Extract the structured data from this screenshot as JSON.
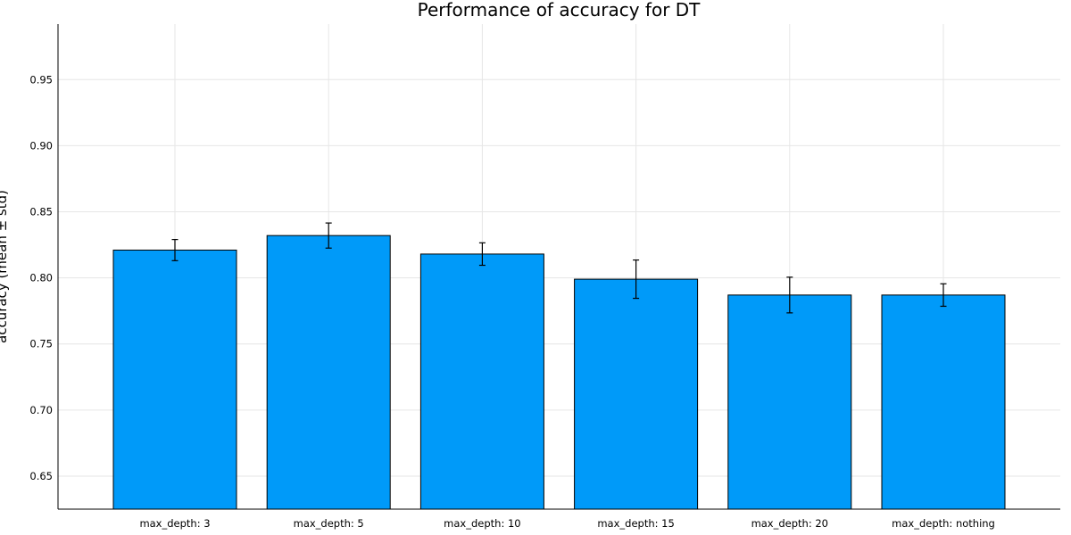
{
  "chart_data": {
    "type": "bar",
    "title": "Performance of accuracy for DT",
    "xlabel": "",
    "ylabel": "accuracy (mean ± std)",
    "categories": [
      "max_depth: 3",
      "max_depth: 5",
      "max_depth: 10",
      "max_depth: 15",
      "max_depth: 20",
      "max_depth: nothing"
    ],
    "series": [
      {
        "values": [
          0.821,
          0.832,
          0.818,
          0.799,
          0.787,
          0.787
        ],
        "errors": [
          0.008,
          0.0095,
          0.0085,
          0.0145,
          0.0135,
          0.0085
        ]
      }
    ],
    "ylim": [
      0.625,
      0.992
    ],
    "yticks": [
      0.65,
      0.7,
      0.75,
      0.8,
      0.85,
      0.9,
      0.95
    ],
    "ytick_labels": [
      "0.65",
      "0.70",
      "0.75",
      "0.80",
      "0.85",
      "0.90",
      "0.95"
    ],
    "grid": true,
    "legend": "none",
    "colors": {
      "bar": "#009af9",
      "grid": "#e6e6e6",
      "axis": "#000000"
    }
  }
}
